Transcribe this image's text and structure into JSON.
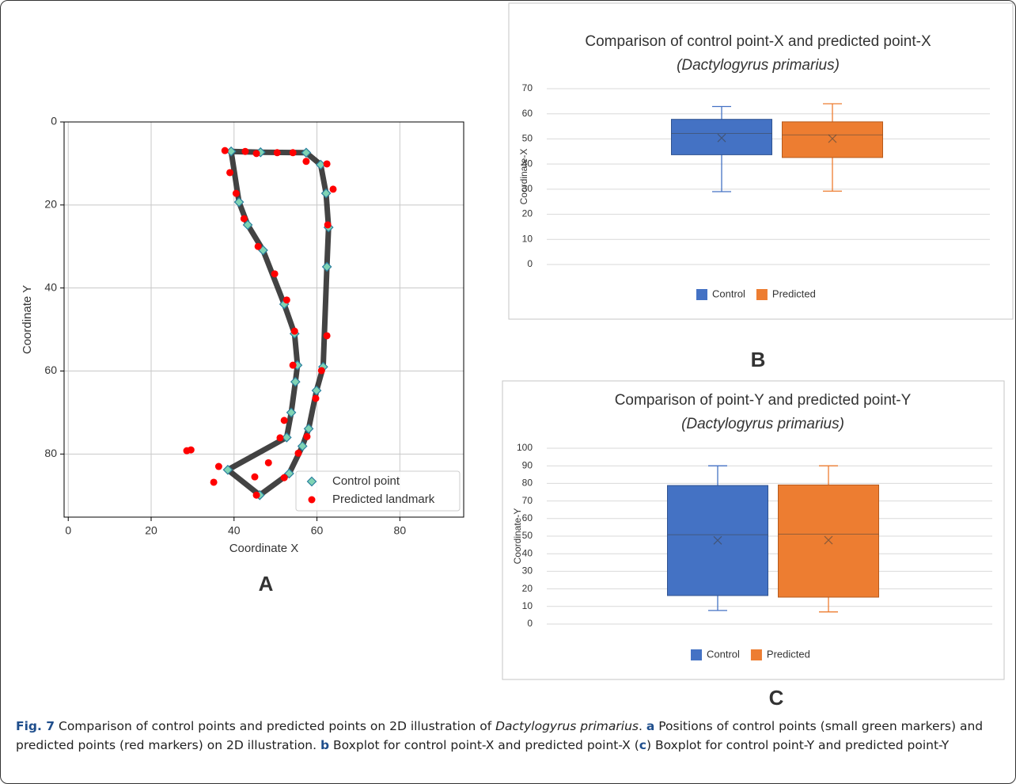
{
  "chart_data": [
    {
      "type": "scatter",
      "panel": "A",
      "x_label": "Coordinate X",
      "y_label": "Coordinate Y",
      "xlim": [
        -1,
        95.4
      ],
      "ylim": [
        95.2,
        0
      ],
      "xticks": [
        0,
        20,
        40,
        60,
        80
      ],
      "yticks": [
        0,
        20,
        40,
        60,
        80
      ],
      "grid": true,
      "legend": "lower right",
      "series": [
        {
          "name": "Control point",
          "color": "#7fd3b4",
          "marker": "diamond",
          "x": [
            39.3,
            46.4,
            57.4,
            60.9,
            62.2,
            62.8,
            62.4,
            61.5,
            59.9,
            58.0,
            56.5,
            53.3,
            46.2,
            38.5,
            52.7,
            53.8,
            54.8,
            55.3,
            54.6,
            52.1,
            47.0,
            43.3,
            41.2
          ],
          "y": [
            7.1,
            7.3,
            7.4,
            10.3,
            17.2,
            25.4,
            34.9,
            59.0,
            64.7,
            73.9,
            78.1,
            84.7,
            89.9,
            83.8,
            76.0,
            70.0,
            62.6,
            58.6,
            51.0,
            43.9,
            30.9,
            24.8,
            19.3
          ]
        },
        {
          "name": "Predicted landmark",
          "color": "#ff0000",
          "marker": "circle",
          "x": [
            37.8,
            39.0,
            40.5,
            42.4,
            45.8,
            49.8,
            52.7,
            54.6,
            54.2,
            52.1,
            51.1,
            48.3,
            52.1,
            55.5,
            57.6,
            59.7,
            61.1,
            62.4,
            62.6,
            63.9,
            62.4,
            57.4,
            54.2,
            50.4,
            45.4,
            42.7,
            45.0,
            45.4,
            36.3,
            35.1,
            29.6,
            28.6
          ],
          "y": [
            6.9,
            12.2,
            17.2,
            23.3,
            30.0,
            36.6,
            42.9,
            50.4,
            58.6,
            71.9,
            76.1,
            82.1,
            85.7,
            79.8,
            75.8,
            66.6,
            59.9,
            51.5,
            24.8,
            16.2,
            10.1,
            9.5,
            7.4,
            7.4,
            7.6,
            7.1,
            85.5,
            89.9,
            83.0,
            86.8,
            79.0,
            79.2
          ]
        }
      ]
    },
    {
      "type": "box",
      "panel": "B",
      "title": "Comparison of control point-X and predicted point-X",
      "subtitle": "(Dactylogyrus primarius)",
      "y_label": "Coordinate-X",
      "ylim": [
        0,
        70
      ],
      "yticks": [
        0,
        10,
        20,
        30,
        40,
        50,
        60,
        70
      ],
      "grid": true,
      "legend": "bottom",
      "series": [
        {
          "name": "Control",
          "color": "#4472c4",
          "min": 29,
          "q1": 43.7,
          "median": 52.2,
          "q3": 57.8,
          "max": 62.9,
          "mean": 50.4
        },
        {
          "name": "Predicted",
          "color": "#ed7d31",
          "min": 29.2,
          "q1": 42.6,
          "median": 51.6,
          "q3": 56.8,
          "max": 64,
          "mean": 50.1
        }
      ]
    },
    {
      "type": "box",
      "panel": "C",
      "title": "Comparison of point-Y and predicted point-Y",
      "subtitle": "(Dactylogyrus primarius)",
      "y_label": "Coordinate-Y",
      "ylim": [
        0,
        100
      ],
      "yticks": [
        0,
        10,
        20,
        30,
        40,
        50,
        60,
        70,
        80,
        90,
        100
      ],
      "grid": true,
      "legend": "bottom",
      "series": [
        {
          "name": "Control",
          "color": "#4472c4",
          "min": 7.7,
          "q1": 16.2,
          "median": 50.8,
          "q3": 78.8,
          "max": 90,
          "mean": 47.6
        },
        {
          "name": "Predicted",
          "color": "#ed7d31",
          "min": 6.9,
          "q1": 15.3,
          "median": 51.1,
          "q3": 79.1,
          "max": 90,
          "mean": 47.7
        }
      ]
    }
  ],
  "caption": [
    "Fig. 7",
    " Comparison of control points and predicted points on 2D illustration of ",
    "Dactylogyrus primarius",
    ". ",
    "a",
    " Positions of control points (small green markers) and predicted points (red markers) on 2D illustration. ",
    "b",
    " Boxplot for control point-X and predicted point-X (",
    "c",
    ") Boxplot for control point-Y and predicted point-Y"
  ]
}
